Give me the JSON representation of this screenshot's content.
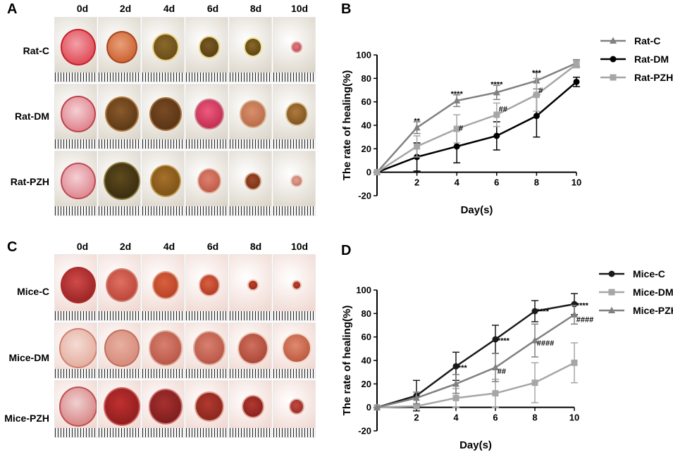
{
  "panels": {
    "a_letter": "A",
    "b_letter": "B",
    "c_letter": "C",
    "d_letter": "D"
  },
  "photo_grids": [
    {
      "days": [
        "0d",
        "2d",
        "4d",
        "6d",
        "8d",
        "10d"
      ],
      "rows": [
        "Rat-C",
        "Rat-DM",
        "Rat-PZH"
      ],
      "skin": "#d9d2c5"
    },
    {
      "days": [
        "0d",
        "2d",
        "4d",
        "6d",
        "8d",
        "10d"
      ],
      "rows": [
        "Mice-C",
        "Mice-DM",
        "Mice-PZH"
      ],
      "skin": "#efd5cd"
    }
  ],
  "chart_data": [
    {
      "type": "line",
      "title": "",
      "xlabel": "Day(s)",
      "ylabel": "The rate of healing(%)",
      "x": [
        0,
        2,
        4,
        6,
        8,
        10
      ],
      "xticks": [
        "2",
        "4",
        "6",
        "8",
        "10"
      ],
      "yticks": [
        "-20",
        "0",
        "20",
        "40",
        "60",
        "80",
        "100"
      ],
      "ylim": [
        -20,
        100
      ],
      "xlim": [
        0,
        10
      ],
      "legend_position": "top-right",
      "series": [
        {
          "name": "Rat-C",
          "marker": "triangle",
          "color": "#808080",
          "values": [
            0,
            38,
            61,
            68,
            78,
            93
          ],
          "errors": [
            0,
            5,
            5,
            6,
            7,
            3
          ]
        },
        {
          "name": "Rat-DM",
          "marker": "circle",
          "color": "#000000",
          "values": [
            0,
            13,
            22,
            31,
            48,
            77
          ],
          "errors": [
            0,
            12,
            14,
            12,
            18,
            4
          ]
        },
        {
          "name": "Rat-PZH",
          "marker": "square",
          "color": "#a6a6a6",
          "values": [
            0,
            22,
            37,
            49,
            66,
            92
          ],
          "errors": [
            0,
            9,
            12,
            10,
            14,
            3
          ]
        }
      ],
      "annotations": [
        {
          "x": 2,
          "y": 44,
          "text": "**",
          "anchor": "middle"
        },
        {
          "x": 4,
          "y": 67,
          "text": "****",
          "anchor": "middle"
        },
        {
          "x": 6,
          "y": 75,
          "text": "****",
          "anchor": "middle"
        },
        {
          "x": 8,
          "y": 85,
          "text": "***",
          "anchor": "middle"
        },
        {
          "x": 4.1,
          "y": 38,
          "text": "#",
          "anchor": "start"
        },
        {
          "x": 6.1,
          "y": 54,
          "text": "##",
          "anchor": "start"
        },
        {
          "x": 8.1,
          "y": 70,
          "text": "#",
          "anchor": "start"
        }
      ]
    },
    {
      "type": "line",
      "title": "",
      "xlabel": "Day(s)",
      "ylabel": "The rate of healing(%)",
      "x": [
        0,
        2,
        4,
        6,
        8,
        10
      ],
      "xticks": [
        "2",
        "4",
        "6",
        "8",
        "10"
      ],
      "yticks": [
        "-20",
        "0",
        "20",
        "40",
        "60",
        "80",
        "100"
      ],
      "ylim": [
        -20,
        100
      ],
      "xlim": [
        0,
        10
      ],
      "legend_position": "top-right",
      "series": [
        {
          "name": "Mice-C",
          "marker": "circle",
          "color": "#1a1a1a",
          "values": [
            0,
            10,
            35,
            58,
            82,
            88
          ],
          "errors": [
            0,
            13,
            12,
            12,
            9,
            9
          ]
        },
        {
          "name": "Mice-DM",
          "marker": "square",
          "color": "#a6a6a6",
          "values": [
            0,
            1,
            8,
            12,
            21,
            38
          ],
          "errors": [
            0,
            2,
            8,
            12,
            17,
            17
          ]
        },
        {
          "name": "Mice-PZH",
          "marker": "triangle",
          "color": "#808080",
          "values": [
            0,
            8,
            20,
            34,
            57,
            79
          ],
          "errors": [
            0,
            5,
            8,
            12,
            14,
            8
          ]
        }
      ],
      "annotations": [
        {
          "x": 4.1,
          "y": 34,
          "text": "***",
          "anchor": "start"
        },
        {
          "x": 6.1,
          "y": 57,
          "text": "****",
          "anchor": "start"
        },
        {
          "x": 6.1,
          "y": 31,
          "text": "##",
          "anchor": "start"
        },
        {
          "x": 8.1,
          "y": 82,
          "text": "****",
          "anchor": "start"
        },
        {
          "x": 8.1,
          "y": 55,
          "text": "####",
          "anchor": "start"
        },
        {
          "x": 10.1,
          "y": 87,
          "text": "****",
          "anchor": "start"
        },
        {
          "x": 10.1,
          "y": 75,
          "text": "####",
          "anchor": "start"
        }
      ]
    }
  ]
}
